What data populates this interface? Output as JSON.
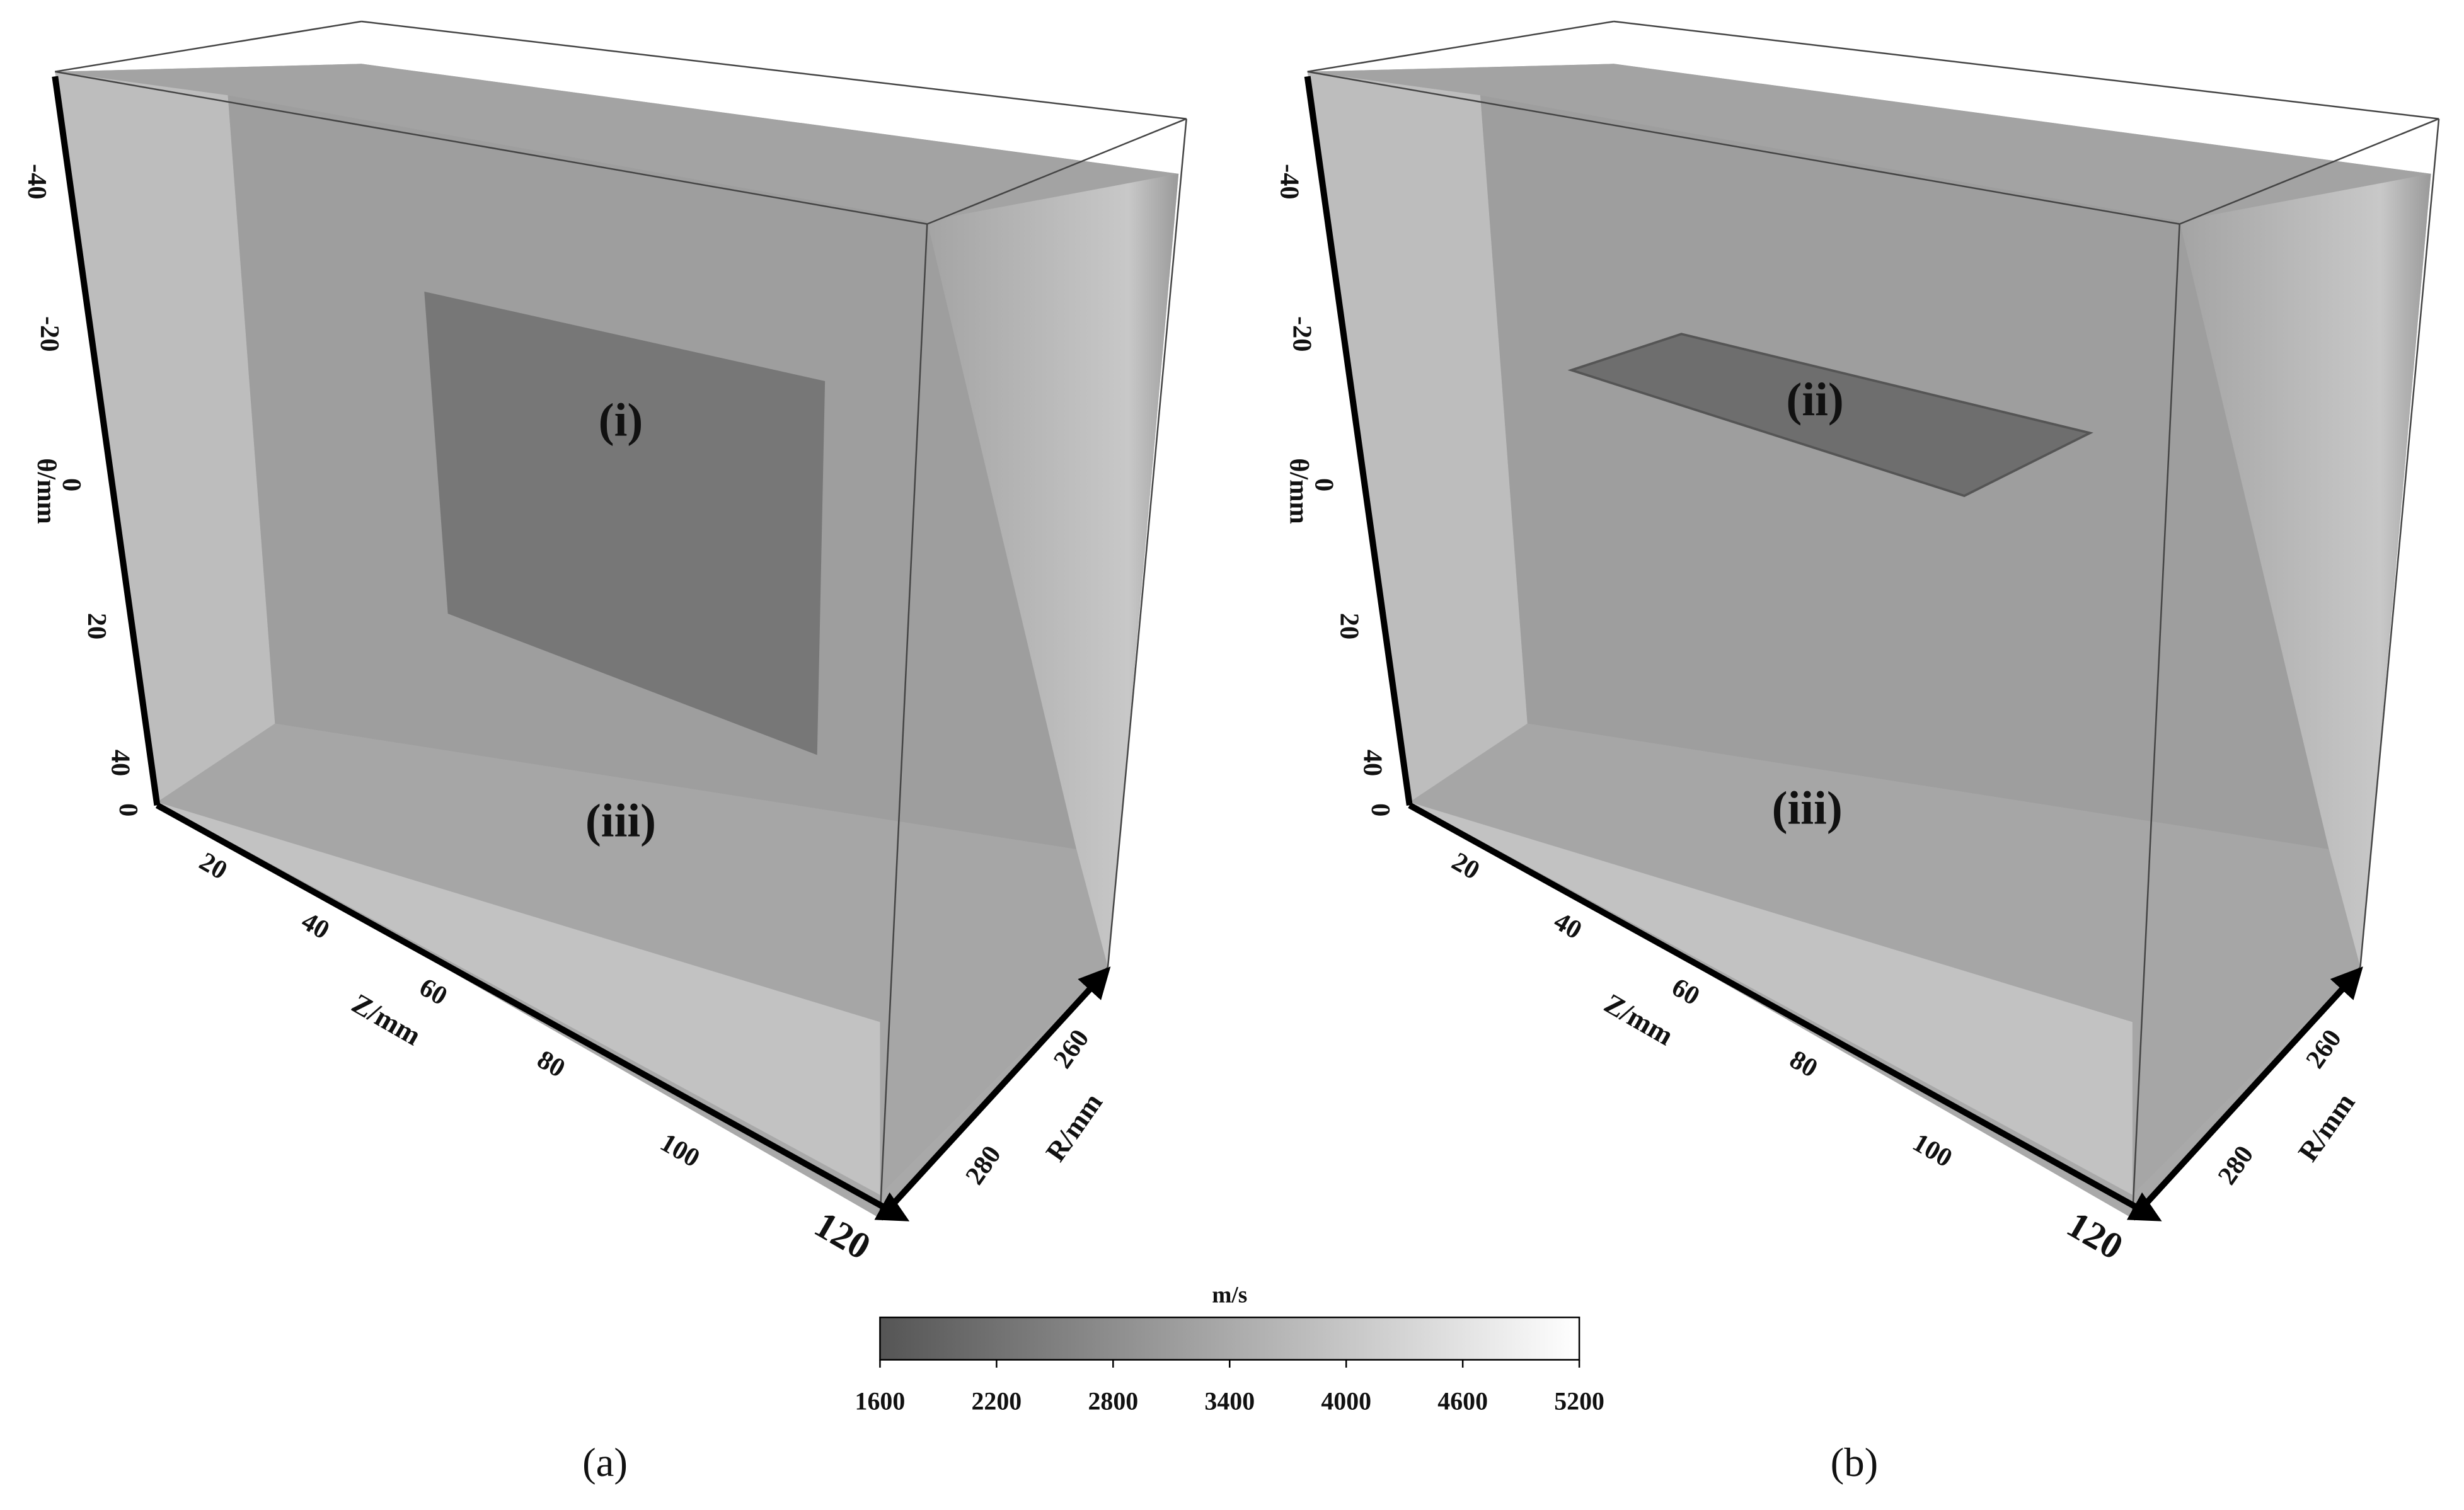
{
  "panels": [
    {
      "caption": "(a)",
      "regions": [
        "(i)",
        "(iii)"
      ],
      "theta_axis": {
        "title": "θ/mm",
        "ticks": [
          -40,
          -20,
          0,
          20,
          40
        ]
      },
      "z_axis": {
        "title": "Z/mm",
        "ticks": [
          0,
          20,
          40,
          60,
          80,
          100,
          120
        ]
      },
      "r_axis": {
        "title": "R/mm",
        "ticks": [
          260,
          280
        ]
      }
    },
    {
      "caption": "(b)",
      "regions": [
        "(ii)",
        "(iii)"
      ],
      "theta_axis": {
        "title": "θ/mm",
        "ticks": [
          -40,
          -20,
          0,
          20,
          40
        ]
      },
      "z_axis": {
        "title": "Z/mm",
        "ticks": [
          0,
          20,
          40,
          60,
          80,
          100,
          120
        ]
      },
      "r_axis": {
        "title": "R/mm",
        "ticks": [
          260,
          280
        ]
      }
    }
  ],
  "colorbar": {
    "unit": "m/s",
    "range": [
      1600,
      5200
    ],
    "ticks": [
      1600,
      2200,
      2800,
      3400,
      4000,
      4600,
      5200
    ],
    "colors": [
      "#555555",
      "#ffffff"
    ]
  }
}
